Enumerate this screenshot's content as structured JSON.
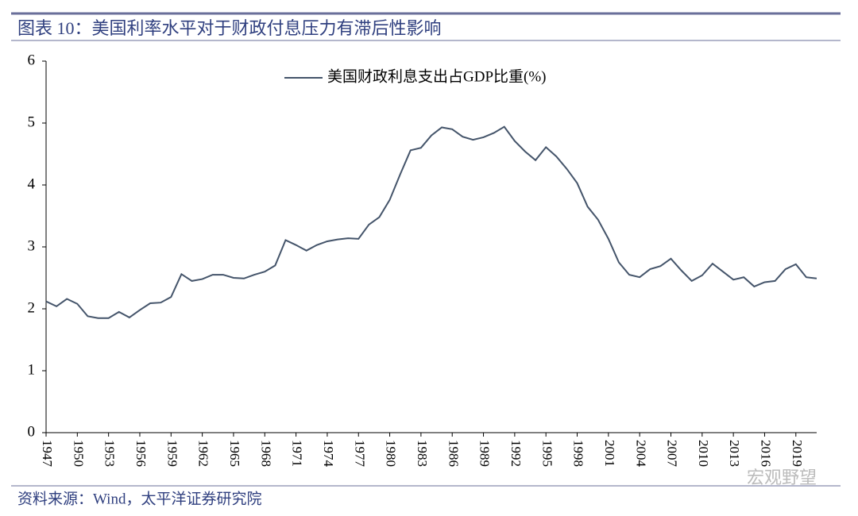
{
  "header": {
    "title": "图表 10：美国利率水平对于财政付息压力有滞后性影响"
  },
  "chart_data": {
    "type": "line",
    "x": [
      1947,
      1948,
      1949,
      1950,
      1951,
      1952,
      1953,
      1954,
      1955,
      1956,
      1957,
      1958,
      1959,
      1960,
      1961,
      1962,
      1963,
      1964,
      1965,
      1966,
      1967,
      1968,
      1969,
      1970,
      1971,
      1972,
      1973,
      1974,
      1975,
      1976,
      1977,
      1978,
      1979,
      1980,
      1981,
      1982,
      1983,
      1984,
      1985,
      1986,
      1987,
      1988,
      1989,
      1990,
      1991,
      1992,
      1993,
      1994,
      1995,
      1996,
      1997,
      1998,
      1999,
      2000,
      2001,
      2002,
      2003,
      2004,
      2005,
      2006,
      2007,
      2008,
      2009,
      2010,
      2011,
      2012,
      2013,
      2014,
      2015,
      2016,
      2017,
      2018,
      2019,
      2020,
      2021
    ],
    "series": [
      {
        "name": "美国财政利息支出占GDP比重(%)",
        "color": "#44546a",
        "values": [
          2.12,
          2.04,
          2.16,
          2.08,
          1.88,
          1.85,
          1.85,
          1.95,
          1.86,
          1.98,
          2.09,
          2.1,
          2.19,
          2.56,
          2.45,
          2.48,
          2.55,
          2.55,
          2.5,
          2.49,
          2.55,
          2.6,
          2.7,
          3.11,
          3.03,
          2.94,
          3.03,
          3.09,
          3.12,
          3.14,
          3.13,
          3.36,
          3.48,
          3.76,
          4.17,
          4.56,
          4.6,
          4.8,
          4.93,
          4.9,
          4.78,
          4.73,
          4.77,
          4.84,
          4.94,
          4.71,
          4.54,
          4.4,
          4.61,
          4.46,
          4.26,
          4.03,
          3.65,
          3.44,
          3.13,
          2.75,
          2.55,
          2.51,
          2.64,
          2.69,
          2.81,
          2.62,
          2.45,
          2.54,
          2.73,
          2.6,
          2.47,
          2.51,
          2.36,
          2.43,
          2.45,
          2.64,
          2.72,
          2.51,
          2.49
        ]
      }
    ],
    "xlim": [
      1947,
      2021
    ],
    "xticks": [
      1947,
      1950,
      1953,
      1956,
      1959,
      1962,
      1965,
      1968,
      1971,
      1974,
      1977,
      1980,
      1983,
      1986,
      1989,
      1992,
      1995,
      1998,
      2001,
      2004,
      2007,
      2010,
      2013,
      2016,
      2019
    ],
    "ylim": [
      0,
      6
    ],
    "yticks": [
      0,
      1,
      2,
      3,
      4,
      5,
      6
    ],
    "legend": "top"
  },
  "footer": {
    "source": "资料来源：Wind，太平洋证券研究院",
    "watermark": "宏观野望"
  }
}
